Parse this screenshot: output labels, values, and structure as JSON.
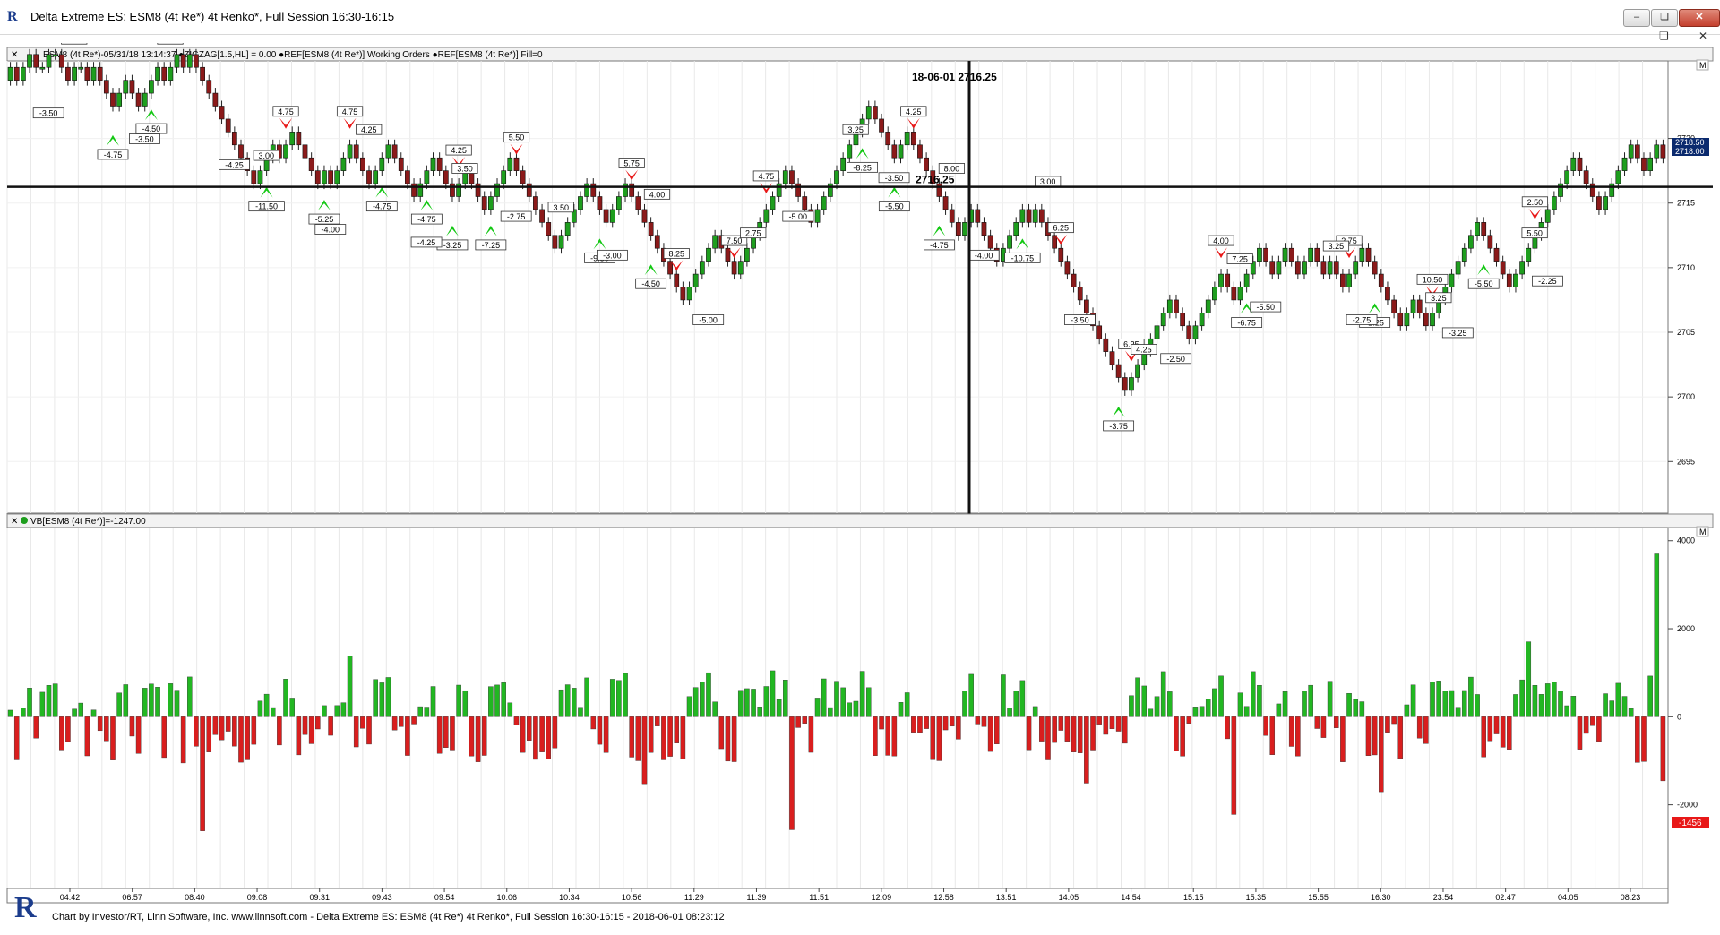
{
  "window": {
    "title": "Delta Extreme ES: ESM8 (4t Re*) 4t Renko*, Full Session 16:30-16:15",
    "minimize_label": "–",
    "restore_label": "❏",
    "close_label": "✕",
    "sub_restore_label": "❏",
    "sub_close_label": "✕"
  },
  "price_panel": {
    "header": "ESM8 (4t Re*)-05/31/18 13:14:37  ●ZIGZAG[1.5,HL] = 0.00  ●REF[ESM8 (4t Re*)] Working Orders  ●REF[ESM8 (4t Re*)] Fill=0",
    "cursor_label": "18-06-01 2716.25",
    "level_label": "2716.25",
    "last_price_tag": "2718.50",
    "last_price_tag2": "2718.00",
    "scale_marker": "M"
  },
  "volume_panel": {
    "header": "VB[ESM8 (4t Re*)]=-1247.00",
    "last_value_tag": "-1456",
    "scale_marker": "M"
  },
  "footer": {
    "logo": "R",
    "text": "Chart by Investor/RT, Linn Software, Inc. www.linnsoft.com - Delta Extreme ES: ESM8 (4t Re*) 4t Renko*, Full Session 16:30-16:15 - 2018-06-01 08:23:12"
  },
  "colors": {
    "up": "#1e9e1e",
    "down": "#8b1a1a",
    "vol_up": "#22b722",
    "vol_down": "#d91e1e",
    "arrow_up": "#14c814",
    "arrow_down": "#e81818",
    "grid": "#e8e8e8"
  },
  "chart_data": [
    {
      "type": "candlestick",
      "title": "",
      "ylim": [
        2691,
        2726
      ],
      "y_ticks": [
        2695,
        2700,
        2705,
        2710,
        2715,
        2720
      ],
      "x_tick_labels": [
        "04:42",
        "06:57",
        "08:40",
        "09:08",
        "09:31",
        "09:43",
        "09:54",
        "10:06",
        "10:34",
        "10:56",
        "11:29",
        "11:39",
        "11:51",
        "12:09",
        "12:58",
        "13:51",
        "14:05",
        "14:54",
        "15:15",
        "15:35",
        "15:55",
        "16:30",
        "23:54",
        "02:47",
        "04:05",
        "08:23"
      ],
      "reference_line": 2716.25,
      "closes": [
        2725.5,
        2724.5,
        2725.5,
        2726.5,
        2725.5,
        2725.5,
        2726.5,
        2726.5,
        2725.5,
        2724.5,
        2725.5,
        2725.5,
        2724.5,
        2725.5,
        2724.5,
        2723.5,
        2722.5,
        2723.5,
        2724.5,
        2723.5,
        2722.5,
        2723.5,
        2724.5,
        2725.5,
        2724.5,
        2725.5,
        2726.5,
        2725.5,
        2726.5,
        2725.5,
        2724.5,
        2723.5,
        2722.5,
        2721.5,
        2720.5,
        2719.5,
        2718.5,
        2717.5,
        2716.5,
        2717.5,
        2718.5,
        2719.5,
        2718.5,
        2719.5,
        2720.5,
        2719.5,
        2718.5,
        2717.5,
        2716.5,
        2717.5,
        2716.5,
        2717.5,
        2718.5,
        2719.5,
        2718.5,
        2717.5,
        2716.5,
        2717.5,
        2718.5,
        2719.5,
        2718.5,
        2717.5,
        2716.5,
        2715.5,
        2716.5,
        2717.5,
        2718.5,
        2717.5,
        2716.5,
        2715.5,
        2716.5,
        2717.5,
        2716.5,
        2715.5,
        2714.5,
        2715.5,
        2716.5,
        2717.5,
        2718.5,
        2717.5,
        2716.5,
        2715.5,
        2714.5,
        2713.5,
        2712.5,
        2711.5,
        2712.5,
        2713.5,
        2714.5,
        2715.5,
        2716.5,
        2715.5,
        2714.5,
        2713.5,
        2714.5,
        2715.5,
        2716.5,
        2715.5,
        2714.5,
        2713.5,
        2712.5,
        2711.5,
        2710.5,
        2709.5,
        2708.5,
        2707.5,
        2708.5,
        2709.5,
        2710.5,
        2711.5,
        2712.5,
        2711.5,
        2710.5,
        2709.5,
        2710.5,
        2711.5,
        2712.5,
        2713.5,
        2714.5,
        2715.5,
        2716.5,
        2717.5,
        2716.5,
        2715.5,
        2714.5,
        2713.5,
        2714.5,
        2715.5,
        2716.5,
        2717.5,
        2718.5,
        2719.5,
        2720.5,
        2721.5,
        2722.5,
        2721.5,
        2720.5,
        2719.5,
        2718.5,
        2719.5,
        2720.5,
        2719.5,
        2718.5,
        2717.5,
        2716.5,
        2715.5,
        2714.5,
        2713.5,
        2712.5,
        2713.5,
        2714.5,
        2713.5,
        2712.5,
        2711.5,
        2710.5,
        2711.5,
        2712.5,
        2713.5,
        2714.5,
        2713.5,
        2714.5,
        2713.5,
        2712.5,
        2711.5,
        2710.5,
        2709.5,
        2708.5,
        2707.5,
        2706.5,
        2705.5,
        2704.5,
        2703.5,
        2702.5,
        2701.5,
        2700.5,
        2701.5,
        2702.5,
        2703.5,
        2704.5,
        2705.5,
        2706.5,
        2707.5,
        2706.5,
        2705.5,
        2704.5,
        2705.5,
        2706.5,
        2707.5,
        2708.5,
        2709.5,
        2708.5,
        2707.5,
        2708.5,
        2709.5,
        2710.5,
        2711.5,
        2710.5,
        2709.5,
        2710.5,
        2711.5,
        2710.5,
        2709.5,
        2710.5,
        2711.5,
        2710.5,
        2709.5,
        2710.5,
        2709.5,
        2708.5,
        2709.5,
        2710.5,
        2711.5,
        2710.5,
        2709.5,
        2708.5,
        2707.5,
        2706.5,
        2705.5,
        2706.5,
        2707.5,
        2706.5,
        2705.5,
        2706.5,
        2707.5,
        2708.5,
        2709.5,
        2710.5,
        2711.5,
        2712.5,
        2713.5,
        2712.5,
        2711.5,
        2710.5,
        2709.5,
        2708.5,
        2709.5,
        2710.5,
        2711.5,
        2712.5,
        2713.5,
        2714.5,
        2715.5,
        2716.5,
        2717.5,
        2718.5,
        2717.5,
        2716.5,
        2715.5,
        2714.5,
        2715.5,
        2716.5,
        2717.5,
        2718.5,
        2719.5,
        2718.5,
        2717.5,
        2718.5,
        2719.5,
        2718.5
      ],
      "arrows_down": [
        {
          "i": 43,
          "label": "4.75"
        },
        {
          "i": 53,
          "label": "4.75"
        },
        {
          "i": 70,
          "label": "4.25"
        },
        {
          "i": 79,
          "label": "5.50"
        },
        {
          "i": 97,
          "label": "5.75"
        },
        {
          "i": 104,
          "label": "8.25"
        },
        {
          "i": 113,
          "label": "7.50"
        },
        {
          "i": 118,
          "label": "4.75"
        },
        {
          "i": 141,
          "label": "4.25"
        },
        {
          "i": 164,
          "label": "6.25"
        },
        {
          "i": 175,
          "label": "6.25"
        },
        {
          "i": 189,
          "label": "4.00"
        },
        {
          "i": 209,
          "label": "2.75"
        },
        {
          "i": 222,
          "label": "10.50"
        },
        {
          "i": 238,
          "label": "2.50"
        }
      ],
      "arrows_up": [
        {
          "i": 16,
          "label": "-4.75"
        },
        {
          "i": 22,
          "label": "-4.50"
        },
        {
          "i": 40,
          "label": "-11.50"
        },
        {
          "i": 49,
          "label": "-5.25"
        },
        {
          "i": 58,
          "label": "-4.75"
        },
        {
          "i": 65,
          "label": "-4.75"
        },
        {
          "i": 69,
          "label": "-3.25"
        },
        {
          "i": 75,
          "label": "-7.25"
        },
        {
          "i": 92,
          "label": "-9.50"
        },
        {
          "i": 100,
          "label": "-4.50"
        },
        {
          "i": 133,
          "label": "-8.25"
        },
        {
          "i": 138,
          "label": "-5.50"
        },
        {
          "i": 145,
          "label": "-4.75"
        },
        {
          "i": 158,
          "label": "-10.75"
        },
        {
          "i": 173,
          "label": "-3.75"
        },
        {
          "i": 193,
          "label": "-6.75"
        },
        {
          "i": 213,
          "label": "-2.25"
        },
        {
          "i": 230,
          "label": "-5.50"
        }
      ],
      "swing_labels_up": [
        "5.50",
        "2.50",
        "3.00",
        "4.25",
        "3.50",
        "3.50",
        "4.00",
        "2.75",
        "3.25",
        "8.00",
        "3.00",
        "4.25",
        "7.25",
        "3.25",
        "3.25",
        "5.50"
      ],
      "swing_labels_down": [
        "-3.50",
        "-3.50",
        "-4.25",
        "-4.00",
        "-4.25",
        "-2.75",
        "-3.00",
        "-5.00",
        "-5.00",
        "-3.50",
        "-4.00",
        "-3.50",
        "-2.50",
        "-5.50",
        "-2.75",
        "-3.25",
        "-2.25"
      ]
    },
    {
      "type": "bar",
      "title": "",
      "series_name": "VB[ESM8 (4t Re*)]",
      "ylim": [
        -3900,
        4300
      ],
      "y_ticks": [
        4000,
        2000,
        0,
        -2000
      ],
      "last_value": -1456
    }
  ]
}
